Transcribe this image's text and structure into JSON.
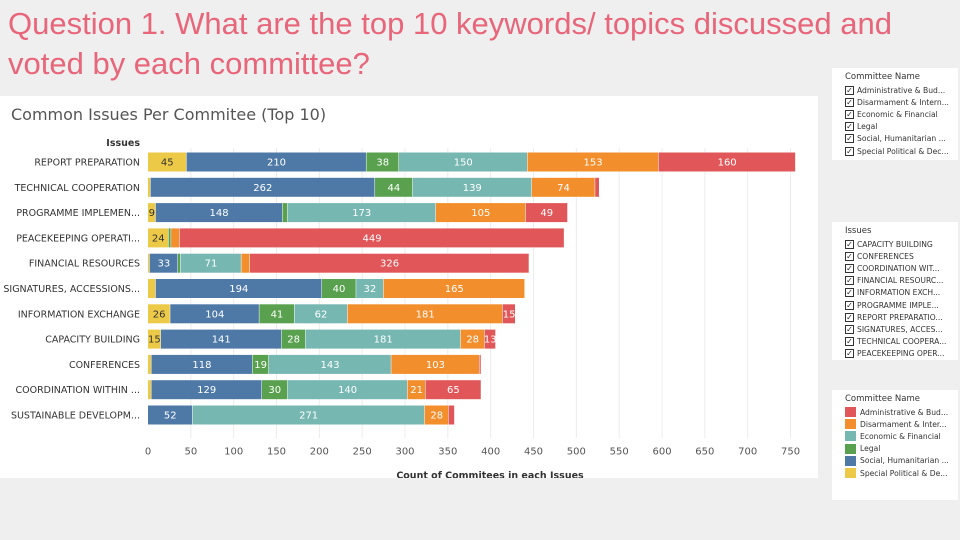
{
  "slide": {
    "title": "Question 1. What are the top 10 keywords/ topics discussed and voted by each committee?"
  },
  "chart_data": {
    "type": "bar",
    "orientation": "horizontal",
    "stacked": true,
    "title": "Common Issues Per Commitee (Top 10)",
    "row_header": "Issues",
    "xlabel": "Count of Commitees in each Issues",
    "xlim": [
      0,
      780
    ],
    "xticks": [
      0,
      50,
      100,
      150,
      200,
      250,
      300,
      350,
      400,
      450,
      500,
      550,
      600,
      650,
      700,
      750
    ],
    "grid": true,
    "categories": [
      "REPORT PREPARATION",
      "TECHNICAL COOPERATION",
      "PROGRAMME IMPLEMEN...",
      "PEACEKEEPING OPERATI...",
      "FINANCIAL RESOURCES",
      "SIGNATURES, ACCESSIONS...",
      "INFORMATION EXCHANGE",
      "CAPACITY BUILDING",
      "CONFERENCES",
      "COORDINATION WITHIN ...",
      "SUSTAINABLE DEVELOPM..."
    ],
    "series": [
      {
        "name": "Special Political & De...",
        "color": "#edc948",
        "values": [
          45,
          3,
          9,
          24,
          2,
          9,
          26,
          15,
          4,
          4,
          0
        ]
      },
      {
        "name": "Social, Humanitarian ...",
        "color": "#4e79a7",
        "values": [
          210,
          262,
          148,
          0,
          33,
          194,
          104,
          141,
          118,
          129,
          52
        ]
      },
      {
        "name": "Legal",
        "color": "#59a14f",
        "values": [
          38,
          44,
          6,
          3,
          3,
          40,
          41,
          28,
          19,
          30,
          0
        ]
      },
      {
        "name": "Economic & Financial",
        "color": "#76b7b2",
        "values": [
          150,
          139,
          173,
          0,
          71,
          32,
          62,
          181,
          143,
          140,
          271
        ]
      },
      {
        "name": "Disarmament & Inter...",
        "color": "#f28e2b",
        "values": [
          153,
          74,
          105,
          10,
          10,
          165,
          181,
          28,
          103,
          21,
          28
        ]
      },
      {
        "name": "Administrative & Bud...",
        "color": "#e15759",
        "values": [
          160,
          5,
          49,
          449,
          326,
          0,
          15,
          13,
          2,
          65,
          7
        ]
      }
    ],
    "data_labels": [
      [
        "45",
        "210",
        "38",
        "150",
        "153",
        "160"
      ],
      [
        "",
        "262",
        "44",
        "139",
        "74",
        ""
      ],
      [
        "9",
        "148",
        "",
        "173",
        "105",
        "49"
      ],
      [
        "24",
        "",
        "",
        "",
        "",
        "449"
      ],
      [
        "",
        "33",
        "",
        "71",
        "",
        "326"
      ],
      [
        "",
        "194",
        "40",
        "32",
        "165",
        ""
      ],
      [
        "26",
        "104",
        "41",
        "62",
        "181",
        "15"
      ],
      [
        "15",
        "141",
        "28",
        "181",
        "28",
        "13"
      ],
      [
        "",
        "118",
        "19",
        "143",
        "103",
        ""
      ],
      [
        "",
        "129",
        "30",
        "140",
        "21",
        "65"
      ],
      [
        "",
        "52",
        "",
        "271",
        "28",
        ""
      ]
    ]
  },
  "filters": {
    "committee": {
      "title": "Committee Name",
      "check": "✓",
      "items": [
        "Administrative & Bud...",
        "Disarmament & Intern...",
        "Economic & Financial",
        "Legal",
        "Social, Humanitarian ...",
        "Special Political & Dec..."
      ]
    },
    "issues": {
      "title": "Issues",
      "check": "✓",
      "items": [
        "CAPACITY BUILDING",
        "CONFERENCES",
        "COORDINATION WIT...",
        "FINANCIAL RESOURC...",
        "INFORMATION EXCH...",
        "PROGRAMME IMPLE...",
        "REPORT PREPARATIO...",
        "SIGNATURES, ACCES...",
        "TECHNICAL COOPERA...",
        "PEACEKEEPING OPER..."
      ]
    }
  },
  "color_legend": {
    "title": "Committee Name",
    "items": [
      {
        "label": "Administrative & Bud...",
        "color": "#e15759"
      },
      {
        "label": "Disarmament & Inter...",
        "color": "#f28e2b"
      },
      {
        "label": "Economic & Financial",
        "color": "#76b7b2"
      },
      {
        "label": "Legal",
        "color": "#59a14f"
      },
      {
        "label": "Social, Humanitarian ...",
        "color": "#4e79a7"
      },
      {
        "label": "Special Political & De...",
        "color": "#edc948"
      }
    ]
  }
}
